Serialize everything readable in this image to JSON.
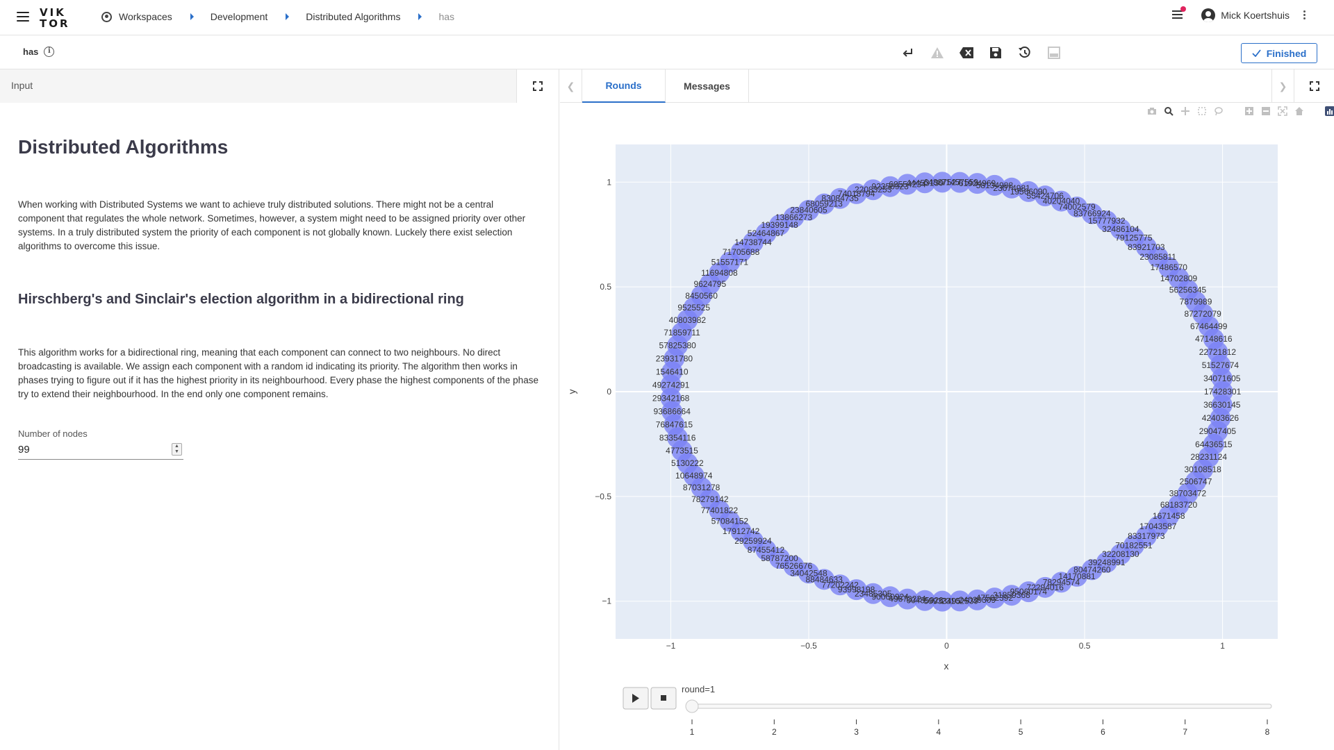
{
  "topbar": {
    "logo": "VIK\nTOR",
    "breadcrumbs": [
      "Workspaces",
      "Development",
      "Distributed Algorithms",
      "has"
    ],
    "user_name": "Mick Koertshuis"
  },
  "subbar": {
    "title": "has",
    "finished_label": "Finished"
  },
  "left_panel": {
    "header_label": "Input",
    "heading": "Distributed Algorithms",
    "intro": "When working with Distributed Systems we want to achieve truly distributed solutions. There might not be a central component that regulates the whole network. Sometimes, however, a system might need to be assigned priority over other systems. In a truly distributed system the priority of each component is not globally known. Luckely there exist selection algorithms to overcome this issue.",
    "subheading": "Hirschberg's and Sinclair's election algorithm in a bidirectional ring",
    "description": "This algorithm works for a bidirectional ring, meaning that each component can connect to two neighbours. No direct broadcasting is available. We assign each component with a random id indicating its priority. The algorithm then works in phases trying to figure out if it has the highest priority in its neighbourhood. Every phase the highest components of the phase try to extend their neighbourhood. In the end only one component remains.",
    "nodes_label": "Number of nodes",
    "nodes_value": "99"
  },
  "right_panel": {
    "tabs": [
      "Rounds",
      "Messages"
    ],
    "active_tab": "Rounds"
  },
  "colors": {
    "accent": "#2a6fc9",
    "node_fill": "#7b82f5",
    "plot_bg": "#e5ecf6"
  },
  "chart_data": {
    "type": "scatter",
    "xlabel": "x",
    "ylabel": "y",
    "xlim": [
      -1.2,
      1.2
    ],
    "ylim": [
      -1.18,
      1.18
    ],
    "xticks": [
      -1,
      -0.5,
      0,
      0.5,
      1
    ],
    "xtick_labels": [
      "−1",
      "−0.5",
      "0",
      "0.5",
      "1"
    ],
    "yticks": [
      -1,
      -0.5,
      0,
      0.5,
      1
    ],
    "ytick_labels": [
      "−1",
      "−0.5",
      "0",
      "0.5",
      "1"
    ],
    "num_nodes": 99,
    "node_labels": [
      "17428301",
      "34071605",
      "51527674",
      "22721812",
      "47148616",
      "67464499",
      "87272079",
      "7879989",
      "56256345",
      "14702809",
      "17486570",
      "23085811",
      "83921703",
      "79125775",
      "32486104",
      "15777932",
      "83766924",
      "74002579",
      "40204040",
      "55424706",
      "19566090",
      "23074981",
      "58134988",
      "61924969",
      "71457559",
      "64887527",
      "44453130",
      "68554234",
      "92356923",
      "22083253",
      "74018794",
      "83084735",
      "68059213",
      "23840605",
      "13866273",
      "19399148",
      "52464867",
      "14738744",
      "71705688",
      "51557171",
      "11694808",
      "9624795",
      "8450560",
      "9525525",
      "40803982",
      "71859711",
      "57825380",
      "23931780",
      "1546410",
      "49274291",
      "29342168",
      "93686664",
      "76847615",
      "83354116",
      "4773515",
      "5130222",
      "10648974",
      "87031278",
      "78279142",
      "77401822",
      "57084152",
      "17912742",
      "29259924",
      "87455412",
      "58787200",
      "76526676",
      "34042548",
      "88484633",
      "77202242",
      "93998198",
      "23485305",
      "90060924",
      "49673224",
      "60485926",
      "59933495",
      "23102539",
      "24039309",
      "47562392",
      "31859368",
      "95060174",
      "72294016",
      "78294574",
      "14170881",
      "80474260",
      "39248991",
      "32208130",
      "70182551",
      "83317973",
      "17043587",
      "1671458",
      "68183720",
      "38703472",
      "2506747",
      "30108518",
      "28231124",
      "64436515",
      "29047405",
      "42403626",
      "36630145"
    ],
    "slider": {
      "current_label": "round=1",
      "steps": [
        "1",
        "2",
        "3",
        "4",
        "5",
        "6",
        "7",
        "8"
      ],
      "current_step": 1
    }
  }
}
